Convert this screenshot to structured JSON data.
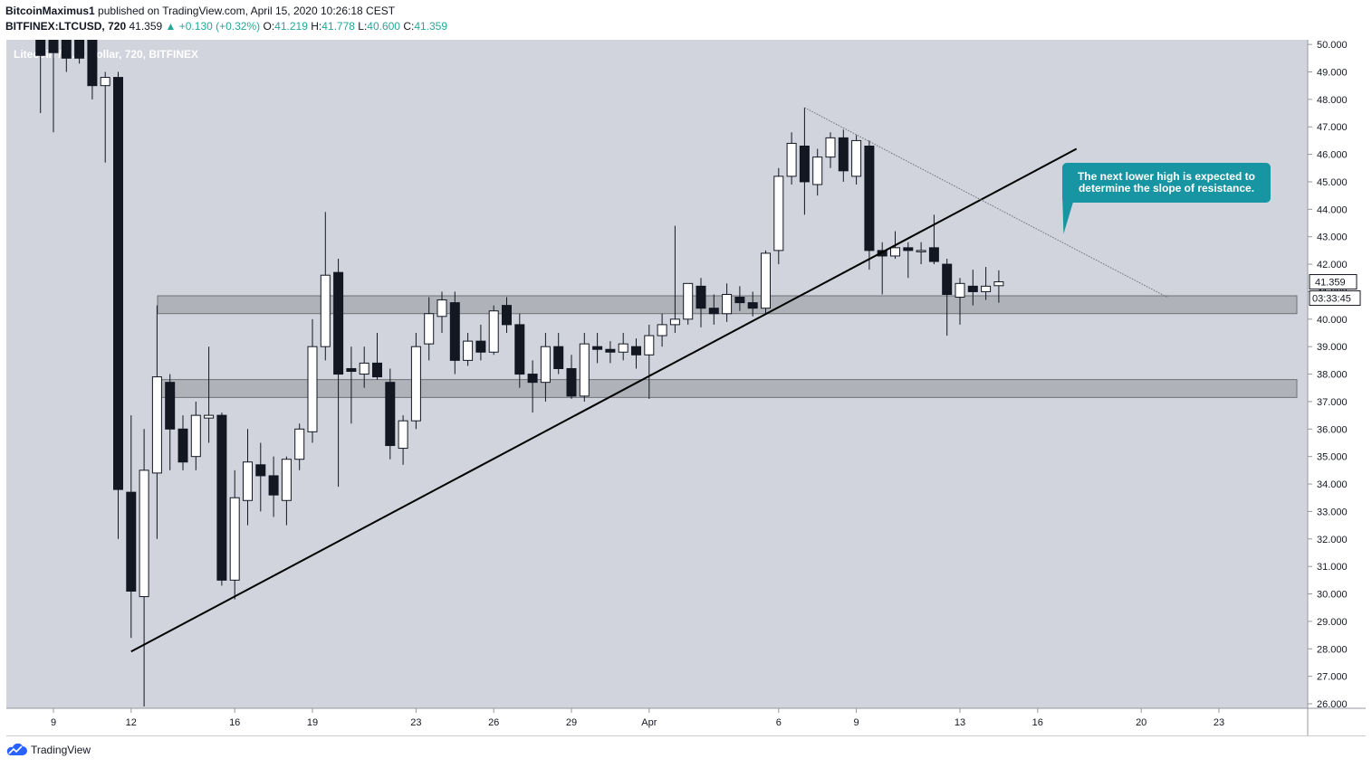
{
  "header": {
    "author": "BitcoinMaximus1",
    "published_text": "published on TradingView.com, April 15, 2020 10:26:18 CEST",
    "symbol": "BITFINEX:LTCUSD, 720",
    "last_price": "41.359",
    "change": "+0.130 (+0.32%)",
    "o_label": "O:",
    "o_value": "41.219",
    "h_label": "H:",
    "h_value": "41.778",
    "l_label": "L:",
    "l_value": "40.600",
    "c_label": "C:",
    "c_value": "41.359"
  },
  "watermark": "Litecoin / U.S. Dollar, 720, BITFINEX",
  "price_label": "41.359",
  "countdown_label": "03:33:45",
  "annotation": [
    "The next lower high is expected to",
    "determine the slope of resistance."
  ],
  "footer": {
    "brand": "TradingView"
  },
  "colors": {
    "background": "#d1d4dc",
    "bull": "#ffffff",
    "bear": "#131722",
    "zone": "#a9abb1",
    "callout": "#1795a3"
  },
  "chart_data": {
    "type": "candlestick",
    "title": "Litecoin / U.S. Dollar, 720, BITFINEX",
    "interval": "720 (12h)",
    "ylim": [
      25.8,
      50.2
    ],
    "yticks": [
      "26.000",
      "27.000",
      "28.000",
      "29.000",
      "30.000",
      "31.000",
      "32.000",
      "33.000",
      "34.000",
      "35.000",
      "36.000",
      "37.000",
      "38.000",
      "39.000",
      "40.000",
      "41.000",
      "42.000",
      "43.000",
      "44.000",
      "45.000",
      "46.000",
      "47.000",
      "48.000",
      "49.000",
      "50.000"
    ],
    "xticks": [
      {
        "label": "9",
        "day": 9
      },
      {
        "label": "12",
        "day": 12
      },
      {
        "label": "16",
        "day": 16
      },
      {
        "label": "19",
        "day": 19
      },
      {
        "label": "23",
        "day": 23
      },
      {
        "label": "26",
        "day": 26
      },
      {
        "label": "29",
        "day": 29
      },
      {
        "label": "Apr",
        "day": 32
      },
      {
        "label": "6",
        "day": 37
      },
      {
        "label": "9",
        "day": 40
      },
      {
        "label": "13",
        "day": 44
      },
      {
        "label": "16",
        "day": 47
      },
      {
        "label": "20",
        "day": 51
      },
      {
        "label": "23",
        "day": 54
      }
    ],
    "x_units": "day index: March 1 = 1, April 1 = 32",
    "candles": [
      {
        "d": 8.5,
        "o": 50.5,
        "h": 50.5,
        "l": 47.5,
        "c": 49.6
      },
      {
        "d": 9.0,
        "o": 50.2,
        "h": 51.0,
        "l": 46.8,
        "c": 49.7
      },
      {
        "d": 9.5,
        "o": 50.5,
        "h": 51.2,
        "l": 49.0,
        "c": 49.5
      },
      {
        "d": 10.0,
        "o": 50.5,
        "h": 51.0,
        "l": 49.3,
        "c": 49.5
      },
      {
        "d": 10.5,
        "o": 50.2,
        "h": 50.5,
        "l": 48.0,
        "c": 48.5
      },
      {
        "d": 11.0,
        "o": 48.5,
        "h": 49.0,
        "l": 45.7,
        "c": 48.8
      },
      {
        "d": 11.5,
        "o": 48.8,
        "h": 49.0,
        "l": 32.0,
        "c": 33.8
      },
      {
        "d": 12.0,
        "o": 33.7,
        "h": 36.5,
        "l": 28.4,
        "c": 30.1
      },
      {
        "d": 12.5,
        "o": 29.9,
        "h": 36.0,
        "l": 25.9,
        "c": 34.5
      },
      {
        "d": 13.0,
        "o": 34.4,
        "h": 40.5,
        "l": 32.0,
        "c": 37.9
      },
      {
        "d": 13.5,
        "o": 37.7,
        "h": 38.0,
        "l": 34.5,
        "c": 36.0
      },
      {
        "d": 14.0,
        "o": 36.0,
        "h": 36.5,
        "l": 34.5,
        "c": 34.8
      },
      {
        "d": 14.5,
        "o": 35.0,
        "h": 37.0,
        "l": 34.5,
        "c": 36.5
      },
      {
        "d": 15.0,
        "o": 36.4,
        "h": 39.0,
        "l": 35.5,
        "c": 36.5
      },
      {
        "d": 15.5,
        "o": 36.5,
        "h": 36.6,
        "l": 30.3,
        "c": 30.5
      },
      {
        "d": 16.0,
        "o": 30.5,
        "h": 34.5,
        "l": 29.8,
        "c": 33.5
      },
      {
        "d": 16.5,
        "o": 33.4,
        "h": 36.0,
        "l": 32.5,
        "c": 34.8
      },
      {
        "d": 17.0,
        "o": 34.7,
        "h": 35.5,
        "l": 33.0,
        "c": 34.3
      },
      {
        "d": 17.5,
        "o": 34.3,
        "h": 35.0,
        "l": 32.8,
        "c": 33.6
      },
      {
        "d": 18.0,
        "o": 33.4,
        "h": 35.0,
        "l": 32.5,
        "c": 34.9
      },
      {
        "d": 18.5,
        "o": 34.9,
        "h": 36.2,
        "l": 34.5,
        "c": 36.0
      },
      {
        "d": 19.0,
        "o": 35.9,
        "h": 40.0,
        "l": 35.5,
        "c": 39.0
      },
      {
        "d": 19.5,
        "o": 39.0,
        "h": 43.9,
        "l": 38.5,
        "c": 41.6
      },
      {
        "d": 20.0,
        "o": 41.7,
        "h": 42.2,
        "l": 33.9,
        "c": 38.0
      },
      {
        "d": 20.5,
        "o": 38.2,
        "h": 39.0,
        "l": 36.2,
        "c": 38.1
      },
      {
        "d": 21.0,
        "o": 38.0,
        "h": 39.0,
        "l": 37.5,
        "c": 38.4
      },
      {
        "d": 21.5,
        "o": 38.4,
        "h": 39.5,
        "l": 37.8,
        "c": 37.9
      },
      {
        "d": 22.0,
        "o": 37.7,
        "h": 38.2,
        "l": 34.9,
        "c": 35.4
      },
      {
        "d": 22.5,
        "o": 35.3,
        "h": 36.5,
        "l": 34.7,
        "c": 36.3
      },
      {
        "d": 23.0,
        "o": 36.3,
        "h": 39.5,
        "l": 36.0,
        "c": 39.0
      },
      {
        "d": 23.5,
        "o": 39.1,
        "h": 40.8,
        "l": 38.5,
        "c": 40.2
      },
      {
        "d": 24.0,
        "o": 40.1,
        "h": 41.0,
        "l": 39.5,
        "c": 40.7
      },
      {
        "d": 24.5,
        "o": 40.6,
        "h": 41.0,
        "l": 38.0,
        "c": 38.5
      },
      {
        "d": 25.0,
        "o": 38.5,
        "h": 39.5,
        "l": 38.3,
        "c": 39.2
      },
      {
        "d": 25.5,
        "o": 39.2,
        "h": 39.8,
        "l": 38.5,
        "c": 38.8
      },
      {
        "d": 26.0,
        "o": 38.8,
        "h": 40.5,
        "l": 38.7,
        "c": 40.3
      },
      {
        "d": 26.5,
        "o": 40.5,
        "h": 40.8,
        "l": 39.5,
        "c": 39.8
      },
      {
        "d": 27.0,
        "o": 39.8,
        "h": 40.2,
        "l": 37.5,
        "c": 38.0
      },
      {
        "d": 27.5,
        "o": 38.0,
        "h": 38.5,
        "l": 36.6,
        "c": 37.7
      },
      {
        "d": 28.0,
        "o": 37.7,
        "h": 39.5,
        "l": 37.0,
        "c": 39.0
      },
      {
        "d": 28.5,
        "o": 39.0,
        "h": 39.5,
        "l": 38.0,
        "c": 38.2
      },
      {
        "d": 29.0,
        "o": 38.2,
        "h": 38.7,
        "l": 37.1,
        "c": 37.2
      },
      {
        "d": 29.5,
        "o": 37.2,
        "h": 39.5,
        "l": 37.0,
        "c": 39.1
      },
      {
        "d": 30.0,
        "o": 39.0,
        "h": 39.5,
        "l": 38.4,
        "c": 38.9
      },
      {
        "d": 30.5,
        "o": 38.9,
        "h": 39.2,
        "l": 38.4,
        "c": 38.8
      },
      {
        "d": 31.0,
        "o": 38.8,
        "h": 39.5,
        "l": 38.5,
        "c": 39.1
      },
      {
        "d": 31.5,
        "o": 39.0,
        "h": 39.3,
        "l": 38.2,
        "c": 38.7
      },
      {
        "d": 32.0,
        "o": 38.7,
        "h": 39.8,
        "l": 37.1,
        "c": 39.4
      },
      {
        "d": 32.5,
        "o": 39.4,
        "h": 40.2,
        "l": 39.0,
        "c": 39.8
      },
      {
        "d": 33.0,
        "o": 39.8,
        "h": 43.4,
        "l": 39.5,
        "c": 40.0
      },
      {
        "d": 33.5,
        "o": 40.0,
        "h": 41.2,
        "l": 39.8,
        "c": 41.3
      },
      {
        "d": 34.0,
        "o": 41.2,
        "h": 41.5,
        "l": 39.7,
        "c": 40.4
      },
      {
        "d": 34.5,
        "o": 40.4,
        "h": 40.9,
        "l": 39.8,
        "c": 40.2
      },
      {
        "d": 35.0,
        "o": 40.2,
        "h": 41.3,
        "l": 39.9,
        "c": 40.9
      },
      {
        "d": 35.5,
        "o": 40.8,
        "h": 41.2,
        "l": 40.3,
        "c": 40.6
      },
      {
        "d": 36.0,
        "o": 40.6,
        "h": 41.0,
        "l": 40.1,
        "c": 40.4
      },
      {
        "d": 36.5,
        "o": 40.4,
        "h": 42.5,
        "l": 40.2,
        "c": 42.4
      },
      {
        "d": 37.0,
        "o": 42.5,
        "h": 45.5,
        "l": 42.0,
        "c": 45.2
      },
      {
        "d": 37.5,
        "o": 45.2,
        "h": 46.8,
        "l": 44.9,
        "c": 46.4
      },
      {
        "d": 38.0,
        "o": 46.3,
        "h": 47.7,
        "l": 43.8,
        "c": 45.0
      },
      {
        "d": 38.5,
        "o": 44.9,
        "h": 46.2,
        "l": 44.5,
        "c": 45.9
      },
      {
        "d": 39.0,
        "o": 45.9,
        "h": 46.8,
        "l": 45.5,
        "c": 46.6
      },
      {
        "d": 39.5,
        "o": 46.6,
        "h": 46.9,
        "l": 45.0,
        "c": 45.4
      },
      {
        "d": 40.0,
        "o": 45.2,
        "h": 46.7,
        "l": 44.9,
        "c": 46.5
      },
      {
        "d": 40.5,
        "o": 46.3,
        "h": 46.5,
        "l": 41.8,
        "c": 42.5
      },
      {
        "d": 41.0,
        "o": 42.5,
        "h": 42.8,
        "l": 40.9,
        "c": 42.3
      },
      {
        "d": 41.5,
        "o": 42.3,
        "h": 43.2,
        "l": 42.2,
        "c": 42.6
      },
      {
        "d": 42.0,
        "o": 42.6,
        "h": 42.8,
        "l": 41.5,
        "c": 42.5
      },
      {
        "d": 42.5,
        "o": 42.5,
        "h": 42.8,
        "l": 42.0,
        "c": 42.5
      },
      {
        "d": 43.0,
        "o": 42.6,
        "h": 43.8,
        "l": 42.0,
        "c": 42.1
      },
      {
        "d": 43.5,
        "o": 42.0,
        "h": 42.2,
        "l": 39.4,
        "c": 40.9
      },
      {
        "d": 44.0,
        "o": 40.8,
        "h": 41.5,
        "l": 39.8,
        "c": 41.3
      },
      {
        "d": 44.5,
        "o": 41.2,
        "h": 41.8,
        "l": 40.5,
        "c": 41.0
      },
      {
        "d": 45.0,
        "o": 41.0,
        "h": 41.9,
        "l": 40.7,
        "c": 41.2
      },
      {
        "d": 45.5,
        "o": 41.219,
        "h": 41.778,
        "l": 40.6,
        "c": 41.359
      }
    ],
    "support_zones": [
      {
        "low": 40.2,
        "high": 40.85
      },
      {
        "low": 37.15,
        "high": 37.8
      }
    ],
    "ascending_trendline": {
      "points": [
        {
          "d": 12.0,
          "y": 27.9
        },
        {
          "d": 48.5,
          "y": 46.2
        }
      ]
    },
    "descending_resistance": {
      "points": [
        {
          "d": 38.0,
          "y": 47.7
        },
        {
          "d": 52.0,
          "y": 40.8
        }
      ]
    },
    "callout_anchor": {
      "d": 48.0,
      "y": 43.1
    },
    "last_price": 41.359
  }
}
